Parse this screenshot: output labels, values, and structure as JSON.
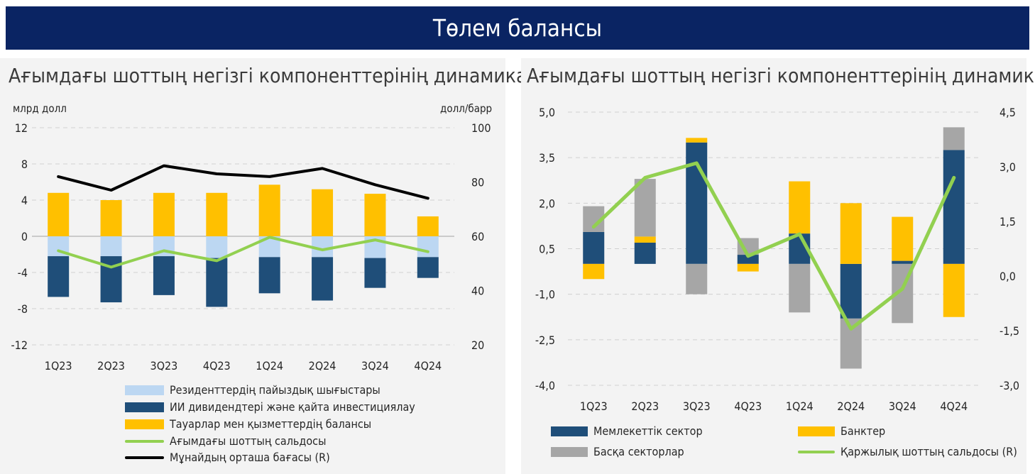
{
  "header": {
    "title": "Төлем балансы"
  },
  "left": {
    "title": "Ағымдағы шоттың негізгі компоненттерінің динамикасы",
    "unit_left": "млрд долл",
    "unit_right": "долл/барр",
    "legend": [
      {
        "label": "Резиденттердің пайыздық шығыстары",
        "color": "#bcd7f2",
        "kind": "box"
      },
      {
        "label": "ИИ дивидендтері және қайта инвестициялау",
        "color": "#1f4e79",
        "kind": "box"
      },
      {
        "label": "Тауарлар мен қызметтердің балансы",
        "color": "#ffc000",
        "kind": "box"
      },
      {
        "label": "Ағымдағы шоттың сальдосы",
        "color": "#92d050",
        "kind": "line"
      },
      {
        "label": "Мұнайдың орташа бағасы (R)",
        "color": "#000000",
        "kind": "line"
      }
    ]
  },
  "right": {
    "title": "Ағымдағы шоттың негізгі компоненттерінің динамикасы",
    "legend": [
      {
        "label": "Мемлекеттік сектор",
        "color": "#1f4e79",
        "kind": "box"
      },
      {
        "label": "Банктер",
        "color": "#ffc000",
        "kind": "box"
      },
      {
        "label": "Басқа секторлар",
        "color": "#a6a6a6",
        "kind": "box"
      },
      {
        "label": "Қаржылық шоттың сальдосы (R)",
        "color": "#92d050",
        "kind": "line"
      }
    ]
  },
  "chart_data": [
    {
      "type": "bar",
      "stacked": true,
      "categories": [
        "1Q23",
        "2Q23",
        "3Q23",
        "4Q23",
        "1Q24",
        "2Q24",
        "3Q24",
        "4Q24"
      ],
      "ylim": [
        -12,
        12
      ],
      "yticks": [
        "12",
        "8",
        "4",
        "0",
        "-4",
        "-8",
        "-12"
      ],
      "y2lim": [
        20,
        100
      ],
      "y2ticks": [
        "100",
        "80",
        "60",
        "40",
        "20"
      ],
      "ylabel": "млрд долл",
      "y2label": "долл/барр",
      "grid": true,
      "series": [
        {
          "name": "Резиденттердің пайыздық шығыстары",
          "type": "bar",
          "color": "#bcd7f2",
          "values": [
            -2.2,
            -2.2,
            -2.2,
            -2.4,
            -2.3,
            -2.3,
            -2.4,
            -2.3
          ]
        },
        {
          "name": "ИИ дивидендтері және қайта инвестициялау",
          "type": "bar",
          "color": "#1f4e79",
          "values": [
            -4.5,
            -5.1,
            -4.3,
            -5.4,
            -4.0,
            -4.8,
            -3.3,
            -2.3
          ]
        },
        {
          "name": "Тауарлар мен қызметтердің балансы",
          "type": "bar",
          "color": "#ffc000",
          "values": [
            4.8,
            4.0,
            4.8,
            4.8,
            5.7,
            5.2,
            4.7,
            2.2
          ]
        },
        {
          "name": "Ағымдағы шоттың сальдосы",
          "type": "line",
          "axis": "left",
          "color": "#92d050",
          "values": [
            -1.6,
            -3.4,
            -1.6,
            -2.7,
            -0.1,
            -1.5,
            -0.4,
            -1.7
          ]
        },
        {
          "name": "Мұнайдың орташа бағасы (R)",
          "type": "line",
          "axis": "right",
          "color": "#000000",
          "values": [
            82,
            77,
            86,
            83,
            82,
            85,
            79,
            74
          ]
        }
      ]
    },
    {
      "type": "bar",
      "stacked": true,
      "categories": [
        "1Q23",
        "2Q23",
        "3Q23",
        "4Q23",
        "1Q24",
        "2Q24",
        "3Q24",
        "4Q24"
      ],
      "ylim": [
        -4.0,
        5.0
      ],
      "yticks": [
        "5,0",
        "3,5",
        "2,0",
        "0,5",
        "-1,0",
        "-2,5",
        "-4,0"
      ],
      "y2lim": [
        -3.0,
        4.5
      ],
      "y2ticks": [
        "4,5",
        "3,0",
        "1,5",
        "0,0",
        "-1,5",
        "-3,0"
      ],
      "grid": true,
      "series": [
        {
          "name": "Мемлекеттік сектор",
          "type": "bar",
          "color": "#1f4e79",
          "values": [
            1.05,
            0.7,
            4.0,
            0.3,
            1.0,
            -1.8,
            0.1,
            3.75
          ]
        },
        {
          "name": "Банктер",
          "type": "bar",
          "color": "#ffc000",
          "values": [
            -0.5,
            0.2,
            0.15,
            -0.25,
            1.72,
            2.0,
            1.45,
            -1.75
          ]
        },
        {
          "name": "Басқа секторлар",
          "type": "bar",
          "color": "#a6a6a6",
          "values": [
            0.85,
            1.9,
            -1.0,
            0.55,
            -1.6,
            -1.65,
            -1.95,
            0.75
          ]
        },
        {
          "name": "Қаржылық шоттың сальдосы (R)",
          "type": "line",
          "axis": "right",
          "color": "#92d050",
          "values": [
            1.35,
            2.7,
            3.1,
            0.55,
            1.15,
            -1.45,
            -0.35,
            2.7
          ]
        }
      ]
    }
  ]
}
